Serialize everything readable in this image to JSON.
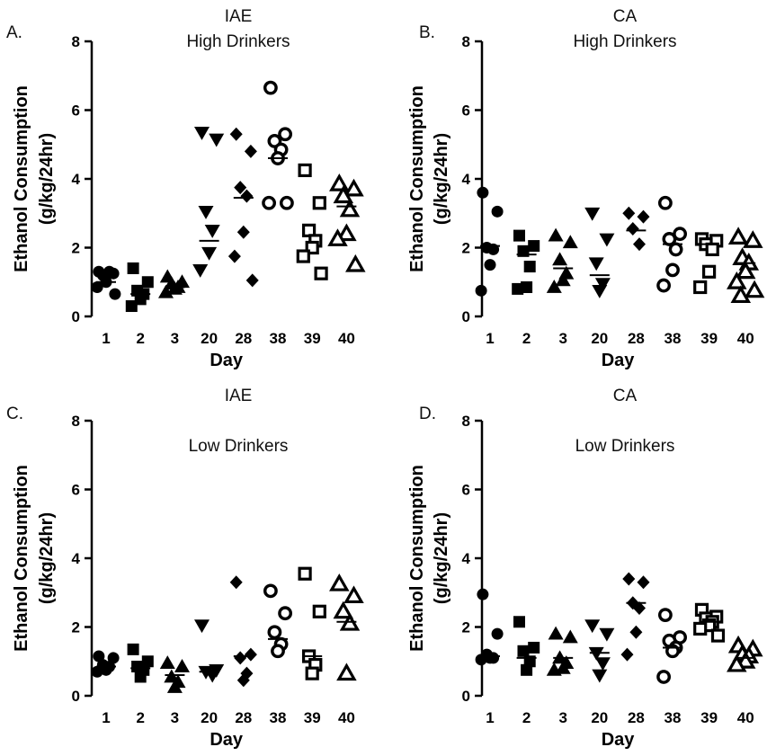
{
  "chart_data": [
    {
      "type": "scatter",
      "panel_letter": "A.",
      "title_lines": [
        "IAE",
        "High Drinkers"
      ],
      "xlabel": "Day",
      "ylabel_lines": [
        "Ethanol  Consumption",
        "(g/kg/24hr)"
      ],
      "ylim": [
        0,
        8
      ],
      "yticks": [
        0,
        2,
        4,
        6,
        8
      ],
      "categories": [
        "1",
        "2",
        "3",
        "20",
        "28",
        "38",
        "39",
        "40"
      ],
      "markers": [
        "circle",
        "square",
        "triangle",
        "triangle-down",
        "diamond",
        "circle-open",
        "square-open",
        "triangle-open"
      ],
      "series": [
        {
          "category": "1",
          "values": [
            1.3,
            1.25,
            1.2,
            1.3,
            1.0,
            0.85,
            0.65
          ],
          "mean": 1.0
        },
        {
          "category": "2",
          "values": [
            1.4,
            1.0,
            0.75,
            0.65,
            0.5,
            0.3
          ],
          "mean": 0.65
        },
        {
          "category": "3",
          "values": [
            1.15,
            1.0,
            0.95,
            0.85,
            0.8,
            0.7
          ],
          "mean": 0.85
        },
        {
          "category": "20",
          "values": [
            5.35,
            5.15,
            3.05,
            2.5,
            1.85,
            1.35
          ],
          "mean": 2.2
        },
        {
          "category": "28",
          "values": [
            5.3,
            4.8,
            3.75,
            3.5,
            2.45,
            1.75,
            1.05
          ],
          "mean": 3.45
        },
        {
          "category": "38",
          "values": [
            6.65,
            5.3,
            5.1,
            4.85,
            4.6,
            3.3,
            3.3
          ],
          "mean": 4.6
        },
        {
          "category": "39",
          "values": [
            4.25,
            3.3,
            2.5,
            2.2,
            2.0,
            1.75,
            1.25
          ],
          "mean": 2.35
        },
        {
          "category": "40",
          "values": [
            3.85,
            3.7,
            3.5,
            3.1,
            2.4,
            2.25,
            1.5
          ],
          "mean": 3.2
        }
      ]
    },
    {
      "type": "scatter",
      "panel_letter": "B.",
      "title_lines": [
        "CA",
        "High Drinkers"
      ],
      "xlabel": "Day",
      "ylabel_lines": [
        "Ethanol  Consumption",
        "(g/kg/24hr)"
      ],
      "ylim": [
        0,
        8
      ],
      "yticks": [
        0,
        2,
        4,
        6,
        8
      ],
      "categories": [
        "1",
        "2",
        "3",
        "20",
        "28",
        "38",
        "39",
        "40"
      ],
      "markers": [
        "circle",
        "square",
        "triangle",
        "triangle-down",
        "diamond",
        "circle-open",
        "square-open",
        "triangle-open"
      ],
      "series": [
        {
          "category": "1",
          "values": [
            3.6,
            3.05,
            2.0,
            1.95,
            1.5,
            0.75
          ],
          "mean": 2.05
        },
        {
          "category": "2",
          "values": [
            2.35,
            2.05,
            1.9,
            1.45,
            0.85,
            0.8
          ],
          "mean": 1.8
        },
        {
          "category": "3",
          "values": [
            2.35,
            2.15,
            1.65,
            1.25,
            1.05,
            0.85
          ],
          "mean": 1.4
        },
        {
          "category": "20",
          "values": [
            3.0,
            2.25,
            1.55,
            0.95,
            0.75
          ],
          "mean": 1.2
        },
        {
          "category": "28",
          "values": [
            3.0,
            2.9,
            2.55,
            2.1
          ],
          "mean": 2.5
        },
        {
          "category": "38",
          "values": [
            3.3,
            2.4,
            2.25,
            1.95,
            1.35,
            0.9
          ],
          "mean": 2.1
        },
        {
          "category": "39",
          "values": [
            2.25,
            2.2,
            2.1,
            1.95,
            1.3,
            0.85
          ],
          "mean": 2.1
        },
        {
          "category": "40",
          "values": [
            2.3,
            2.2,
            1.7,
            1.55,
            1.3,
            1.0,
            0.75,
            0.6
          ],
          "mean": 1.55
        }
      ]
    },
    {
      "type": "scatter",
      "panel_letter": "C.",
      "title_lines": [
        "IAE",
        "Low Drinkers"
      ],
      "xlabel": "Day",
      "ylabel_lines": [
        "Ethanol  Consumption",
        "(g/kg/24hr)"
      ],
      "ylim": [
        0,
        8
      ],
      "yticks": [
        0,
        2,
        4,
        6,
        8
      ],
      "categories": [
        "1",
        "2",
        "3",
        "20",
        "28",
        "38",
        "39",
        "40"
      ],
      "markers": [
        "circle",
        "square",
        "triangle",
        "triangle-down",
        "diamond",
        "circle-open",
        "square-open",
        "triangle-open"
      ],
      "series": [
        {
          "category": "1",
          "values": [
            1.15,
            1.1,
            0.9,
            0.85,
            0.75,
            0.7
          ],
          "mean": 0.85
        },
        {
          "category": "2",
          "values": [
            1.35,
            1.0,
            0.85,
            0.75,
            0.55
          ],
          "mean": 0.8
        },
        {
          "category": "3",
          "values": [
            0.95,
            0.85,
            0.55,
            0.4,
            0.25
          ],
          "mean": 0.6
        },
        {
          "category": "20",
          "values": [
            2.05,
            0.75,
            0.7,
            0.6
          ],
          "mean": 0.7
        },
        {
          "category": "28",
          "values": [
            3.3,
            1.2,
            1.1,
            0.65,
            0.45
          ],
          "mean": 1.15
        },
        {
          "category": "38",
          "values": [
            3.05,
            2.4,
            1.85,
            1.5,
            1.3
          ],
          "mean": 1.65
        },
        {
          "category": "39",
          "values": [
            3.55,
            2.45,
            1.15,
            0.9,
            0.65
          ],
          "mean": 1.15
        },
        {
          "category": "40",
          "values": [
            3.25,
            2.9,
            2.45,
            2.1,
            0.65
          ],
          "mean": 2.15
        }
      ]
    },
    {
      "type": "scatter",
      "panel_letter": "D.",
      "title_lines": [
        "CA",
        "Low Drinkers"
      ],
      "xlabel": "Day",
      "ylabel_lines": [
        "Ethanol  Consumption",
        "(g/kg/24hr)"
      ],
      "ylim": [
        0,
        8
      ],
      "yticks": [
        0,
        2,
        4,
        6,
        8
      ],
      "categories": [
        "1",
        "2",
        "3",
        "20",
        "28",
        "38",
        "39",
        "40"
      ],
      "markers": [
        "circle",
        "square",
        "triangle",
        "triangle-down",
        "diamond",
        "circle-open",
        "square-open",
        "triangle-open"
      ],
      "series": [
        {
          "category": "1",
          "values": [
            2.95,
            1.8,
            1.2,
            1.1,
            1.1,
            1.05
          ],
          "mean": 1.15
        },
        {
          "category": "2",
          "values": [
            2.15,
            1.4,
            1.3,
            1.0,
            0.75
          ],
          "mean": 1.1
        },
        {
          "category": "3",
          "values": [
            1.8,
            1.7,
            1.1,
            0.95,
            0.8,
            0.75
          ],
          "mean": 1.1
        },
        {
          "category": "20",
          "values": [
            2.05,
            1.8,
            1.25,
            0.95,
            0.6
          ],
          "mean": 1.25
        },
        {
          "category": "28",
          "values": [
            3.4,
            3.3,
            2.7,
            2.55,
            1.85,
            1.2
          ],
          "mean": 2.7
        },
        {
          "category": "38",
          "values": [
            2.35,
            1.7,
            1.6,
            1.4,
            1.3,
            0.55
          ],
          "mean": 1.4
        },
        {
          "category": "39",
          "values": [
            2.5,
            2.3,
            2.25,
            2.15,
            2.05,
            1.95,
            1.75
          ],
          "mean": 2.15
        },
        {
          "category": "40",
          "values": [
            1.45,
            1.35,
            1.2,
            1.15,
            1.0,
            0.9
          ],
          "mean": 1.1
        }
      ]
    }
  ]
}
